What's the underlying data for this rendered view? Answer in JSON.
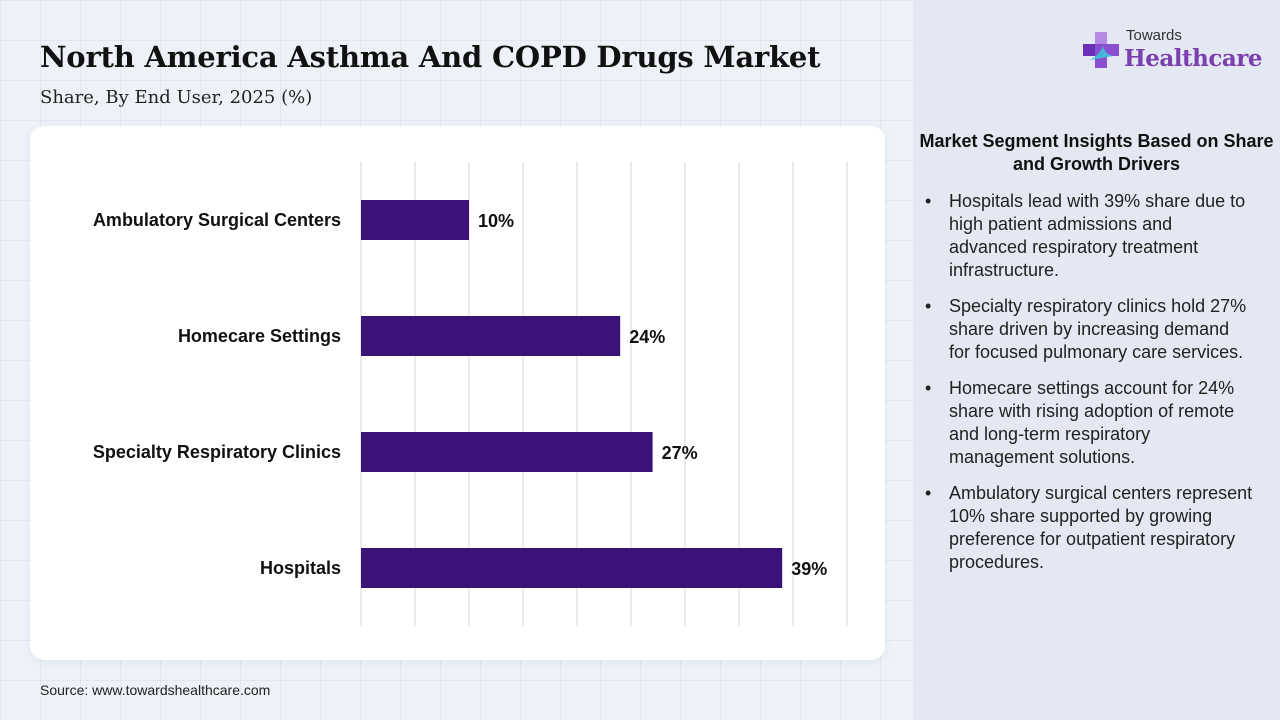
{
  "header": {
    "title": "North America Asthma And COPD Drugs Market",
    "subtitle": "Share, By End User, 2025 (%)"
  },
  "chart_data": {
    "type": "bar",
    "orientation": "horizontal",
    "categories": [
      "Ambulatory Surgical Centers",
      "Homecare Settings",
      "Specialty Respiratory Clinics",
      "Hospitals"
    ],
    "values": [
      10,
      24,
      27,
      39
    ],
    "value_labels": [
      "10%",
      "24%",
      "27%",
      "39%"
    ],
    "unit": "%",
    "xlim": [
      0,
      45
    ],
    "grid": true,
    "bar_color": "#3a1278",
    "title": "",
    "xlabel": "",
    "ylabel": ""
  },
  "source": "Source: www.towardshealthcare.com",
  "logo": {
    "small_text": "Towards",
    "big_text": "Healthcare"
  },
  "insights": {
    "title": "Market Segment Insights Based on Share and Growth Drivers",
    "items": [
      "Hospitals lead with 39% share due to high patient admissions and advanced respiratory treatment infrastructure.",
      "Specialty respiratory clinics hold 27% share driven by increasing demand for focused pulmonary care services.",
      "Homecare settings account for 24% share with rising adoption of remote and long-term respiratory management solutions.",
      "Ambulatory surgical centers represent 10% share supported by growing preference for outpatient respiratory procedures."
    ]
  },
  "colors": {
    "bar": "#3a1278",
    "accent": "#7b3fb0",
    "logo_cross": "#8a4fd0"
  }
}
